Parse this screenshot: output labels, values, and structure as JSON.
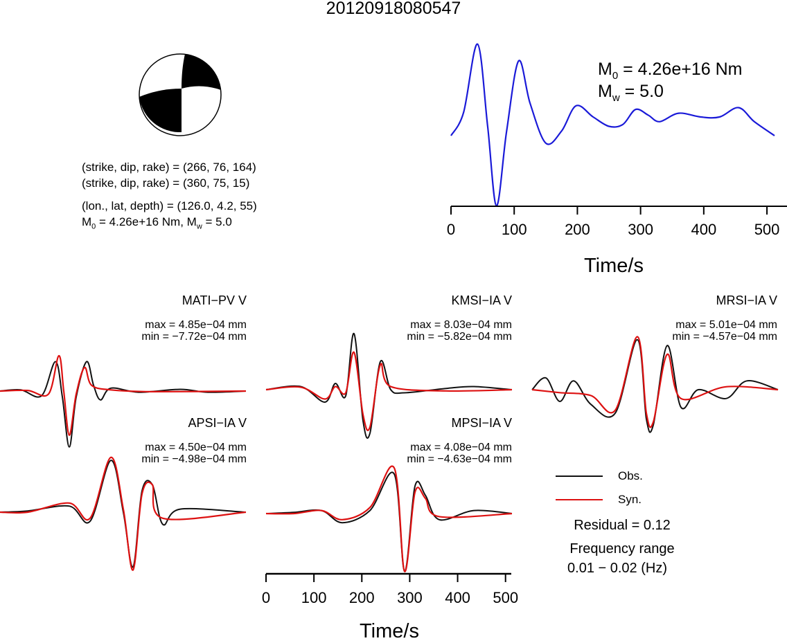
{
  "title": "20120918080547",
  "mechanism": {
    "line1": "(strike, dip, rake) = (266, 76, 164)",
    "line2": "(strike, dip, rake) = (360, 75, 15)",
    "line3": "(lon., lat, depth) = (126.0, 4.2, 55)",
    "m0_prefix": "M",
    "m0_sub": "0",
    "m0_value": " = 4.26e+16 Nm, M",
    "mw_sub": "w",
    "mw_value": " = 5.0"
  },
  "stf": {
    "m0_label": "M",
    "m0_sub": "0",
    "m0_value": " = 4.26e+16 Nm",
    "mw_label": "M",
    "mw_sub": "w",
    "mw_value": " = 5.0",
    "xlabel": "Time/s",
    "ticks": [
      "0",
      "100",
      "200",
      "300",
      "400",
      "500"
    ]
  },
  "stations": [
    {
      "name": "MATI−PV V",
      "max": "max = 4.85e−04 mm",
      "min": "min = −7.72e−04 mm"
    },
    {
      "name": "KMSI−IA V",
      "max": "max = 8.03e−04 mm",
      "min": "min = −5.82e−04 mm"
    },
    {
      "name": "MRSI−IA V",
      "max": "max = 5.01e−04 mm",
      "min": "min = −4.57e−04 mm"
    },
    {
      "name": "APSI−IA V",
      "max": "max = 4.50e−04 mm",
      "min": "min = −4.98e−04 mm"
    },
    {
      "name": "MPSI−IA V",
      "max": "max = 4.08e−04 mm",
      "min": "min = −4.63e−04 mm"
    }
  ],
  "waveform_axis": {
    "xlabel": "Time/s",
    "ticks": [
      "0",
      "100",
      "200",
      "300",
      "400",
      "500"
    ]
  },
  "legend": {
    "obs": "Obs.",
    "syn": "Syn.",
    "residual": "Residual = 0.12",
    "freq_label": "Frequency range",
    "freq_value": "0.01 − 0.02 (Hz)"
  },
  "colors": {
    "obs": "#111111",
    "syn": "#dd1111",
    "stf": "#1a1ad8"
  },
  "chart_data": [
    {
      "type": "line",
      "title": "",
      "xlabel": "Time/s",
      "ylabel": "",
      "xlim": [
        0,
        512
      ],
      "series": [
        {
          "values": [
            [
              0,
              0
            ],
            [
              20,
              0.25
            ],
            [
              42,
              0.98
            ],
            [
              58,
              0.1
            ],
            [
              72,
              -0.75
            ],
            [
              88,
              0.05
            ],
            [
              107,
              0.8
            ],
            [
              125,
              0.35
            ],
            [
              150,
              -0.08
            ],
            [
              175,
              0.05
            ],
            [
              198,
              0.32
            ],
            [
              225,
              0.2
            ],
            [
              250,
              0.1
            ],
            [
              272,
              0.12
            ],
            [
              292,
              0.28
            ],
            [
              312,
              0.22
            ],
            [
              330,
              0.15
            ],
            [
              360,
              0.24
            ],
            [
              395,
              0.2
            ],
            [
              425,
              0.2
            ],
            [
              455,
              0.3
            ],
            [
              480,
              0.15
            ],
            [
              512,
              0.0
            ]
          ]
        }
      ]
    },
    {
      "type": "line",
      "xlabel": "Time/s",
      "xlim": [
        0,
        512
      ],
      "panels": [
        {
          "station": "MATI−PV V",
          "obs": [
            [
              0,
              0
            ],
            [
              30,
              0.02
            ],
            [
              60,
              -0.08
            ],
            [
              80,
              0.5
            ],
            [
              90,
              -0.1
            ],
            [
              100,
              -0.95
            ],
            [
              110,
              -0.1
            ],
            [
              125,
              0.5
            ],
            [
              135,
              0.1
            ],
            [
              145,
              -0.15
            ],
            [
              160,
              0.05
            ],
            [
              200,
              -0.02
            ],
            [
              260,
              0.03
            ],
            [
              300,
              -0.02
            ],
            [
              355,
              0
            ]
          ],
          "syn": [
            [
              0,
              0
            ],
            [
              40,
              0.01
            ],
            [
              70,
              -0.05
            ],
            [
              85,
              0.6
            ],
            [
              92,
              0
            ],
            [
              100,
              -0.75
            ],
            [
              110,
              -0.05
            ],
            [
              122,
              0.4
            ],
            [
              132,
              0.1
            ],
            [
              160,
              0.02
            ],
            [
              220,
              -0.01
            ],
            [
              355,
              0
            ]
          ]
        },
        {
          "station": "KMSI−IA V",
          "obs": [
            [
              0,
              0
            ],
            [
              50,
              0.05
            ],
            [
              85,
              -0.2
            ],
            [
              100,
              0.1
            ],
            [
              115,
              -0.1
            ],
            [
              127,
              0.9
            ],
            [
              140,
              -0.5
            ],
            [
              150,
              -0.7
            ],
            [
              165,
              0.45
            ],
            [
              180,
              0
            ],
            [
              200,
              -0.05
            ],
            [
              260,
              0.02
            ],
            [
              300,
              0.05
            ],
            [
              355,
              0
            ]
          ],
          "syn": [
            [
              0,
              0
            ],
            [
              50,
              0.04
            ],
            [
              85,
              -0.15
            ],
            [
              100,
              0.05
            ],
            [
              115,
              -0.05
            ],
            [
              127,
              0.6
            ],
            [
              140,
              -0.4
            ],
            [
              150,
              -0.6
            ],
            [
              165,
              0.4
            ],
            [
              180,
              0.05
            ],
            [
              260,
              -0.02
            ],
            [
              355,
              0
            ]
          ]
        },
        {
          "station": "MRSI−IA V",
          "obs": [
            [
              0,
              0
            ],
            [
              20,
              0.2
            ],
            [
              40,
              -0.2
            ],
            [
              60,
              0.15
            ],
            [
              85,
              -0.25
            ],
            [
              120,
              -0.4
            ],
            [
              152,
              0.85
            ],
            [
              165,
              -0.5
            ],
            [
              175,
              -0.6
            ],
            [
              195,
              0.75
            ],
            [
              215,
              -0.3
            ],
            [
              240,
              0
            ],
            [
              280,
              -0.15
            ],
            [
              310,
              0.15
            ],
            [
              355,
              0
            ]
          ],
          "syn": [
            [
              0,
              0
            ],
            [
              40,
              -0.05
            ],
            [
              85,
              -0.1
            ],
            [
              120,
              -0.35
            ],
            [
              152,
              0.9
            ],
            [
              165,
              -0.4
            ],
            [
              175,
              -0.55
            ],
            [
              195,
              0.6
            ],
            [
              215,
              -0.15
            ],
            [
              280,
              0.05
            ],
            [
              355,
              0
            ]
          ]
        },
        {
          "station": "APSI−IA V",
          "obs": [
            [
              0,
              0
            ],
            [
              40,
              0.02
            ],
            [
              100,
              0.1
            ],
            [
              130,
              -0.15
            ],
            [
              160,
              0.85
            ],
            [
              178,
              0
            ],
            [
              192,
              -0.9
            ],
            [
              205,
              0.35
            ],
            [
              220,
              0.45
            ],
            [
              235,
              -0.2
            ],
            [
              260,
              0.05
            ],
            [
              355,
              0
            ]
          ],
          "syn": [
            [
              0,
              0
            ],
            [
              40,
              0
            ],
            [
              100,
              0.15
            ],
            [
              130,
              -0.1
            ],
            [
              160,
              0.9
            ],
            [
              178,
              0.05
            ],
            [
              192,
              -0.95
            ],
            [
              205,
              0.3
            ],
            [
              220,
              0.45
            ],
            [
              235,
              -0.1
            ],
            [
              355,
              0
            ]
          ]
        },
        {
          "station": "MPSI−IA V",
          "obs": [
            [
              0,
              0
            ],
            [
              40,
              0.02
            ],
            [
              80,
              0.05
            ],
            [
              110,
              -0.15
            ],
            [
              150,
              0.05
            ],
            [
              185,
              0.65
            ],
            [
              200,
              -0.95
            ],
            [
              215,
              0.45
            ],
            [
              230,
              0.3
            ],
            [
              250,
              -0.1
            ],
            [
              300,
              0.05
            ],
            [
              355,
              0
            ]
          ],
          "syn": [
            [
              0,
              0
            ],
            [
              40,
              0
            ],
            [
              80,
              0.05
            ],
            [
              110,
              -0.1
            ],
            [
              150,
              0.1
            ],
            [
              185,
              0.75
            ],
            [
              200,
              -0.95
            ],
            [
              215,
              0.35
            ],
            [
              230,
              0.25
            ],
            [
              250,
              -0.05
            ],
            [
              355,
              0
            ]
          ]
        }
      ]
    }
  ]
}
